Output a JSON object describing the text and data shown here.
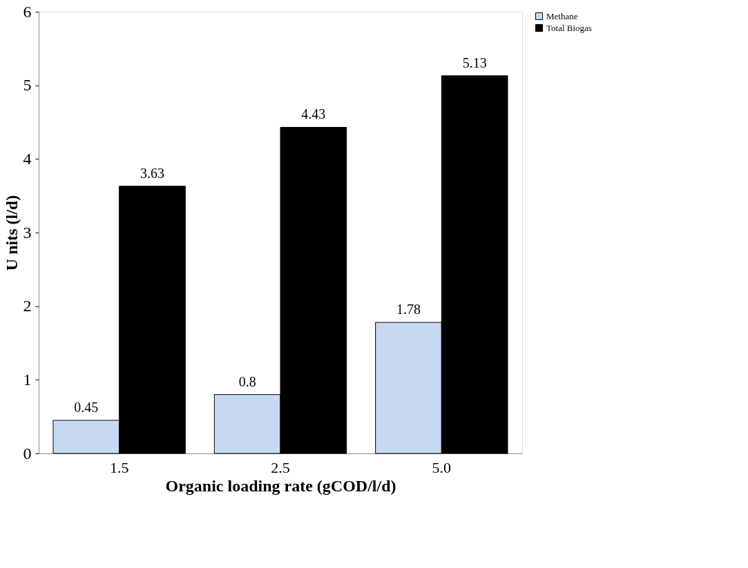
{
  "chart_data": {
    "type": "bar",
    "xlabel": "Organic loading rate (gCOD/l/d)",
    "ylabel": "U nits (l/d)",
    "categories": [
      "1.5",
      "2.5",
      "5.0"
    ],
    "series": [
      {
        "name": "Methane",
        "color": "#c6d9f0",
        "values": [
          0.45,
          0.8,
          1.78
        ]
      },
      {
        "name": "Total Biogas",
        "color": "#000000",
        "values": [
          3.63,
          4.43,
          5.13
        ]
      }
    ],
    "ylim": [
      0,
      6
    ],
    "yticks": [
      0,
      1,
      2,
      3,
      4,
      5,
      6
    ],
    "data_labels": true,
    "legend": "top right",
    "grid": false
  }
}
